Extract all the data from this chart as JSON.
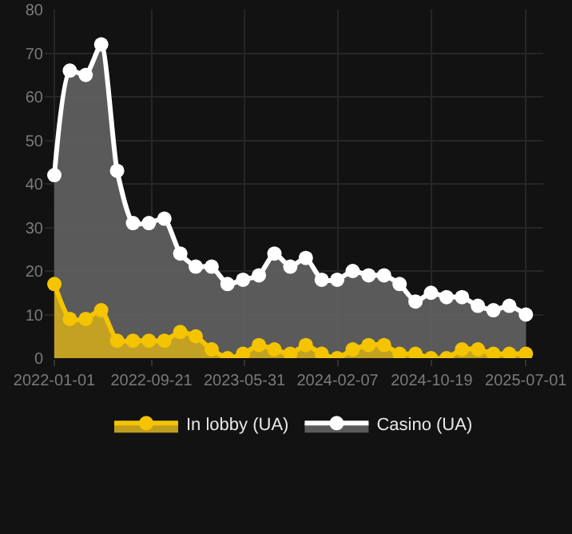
{
  "chart_data": {
    "type": "area",
    "x": [
      "2022-01-01",
      "2022-02-12",
      "2022-03-27",
      "2022-05-08",
      "2022-06-20",
      "2022-08-02",
      "2022-09-14",
      "2022-10-26",
      "2022-12-08",
      "2023-01-19",
      "2023-03-03",
      "2023-04-15",
      "2023-05-27",
      "2023-07-09",
      "2023-08-20",
      "2023-10-02",
      "2023-11-13",
      "2023-12-26",
      "2024-02-06",
      "2024-03-19",
      "2024-05-01",
      "2024-06-12",
      "2024-07-24",
      "2024-09-05",
      "2024-10-17",
      "2024-11-28",
      "2025-01-09",
      "2025-02-21",
      "2025-04-04",
      "2025-05-17",
      "2025-07-01"
    ],
    "series": [
      {
        "name": "In lobby (UA)",
        "color": "#f5c400",
        "values": [
          17,
          9,
          9,
          11,
          4,
          4,
          4,
          4,
          6,
          5,
          2,
          0,
          1,
          3,
          2,
          1,
          3,
          1,
          0,
          2,
          3,
          3,
          1,
          1,
          0,
          0,
          2,
          2,
          1,
          1,
          1
        ]
      },
      {
        "name": "Casino (UA)",
        "color": "#ffffff",
        "values": [
          42,
          66,
          65,
          72,
          43,
          31,
          31,
          32,
          24,
          21,
          21,
          17,
          18,
          19,
          24,
          21,
          23,
          18,
          18,
          20,
          19,
          19,
          17,
          13,
          15,
          14,
          14,
          12,
          11,
          12,
          10
        ]
      }
    ],
    "ylim": [
      0,
      80
    ],
    "yticks": [
      0,
      10,
      20,
      30,
      40,
      50,
      60,
      70,
      80
    ],
    "xlim": [
      "2021-12-06",
      "2025-08-17"
    ],
    "xticks": [
      "2022-01-01",
      "2022-09-21",
      "2023-05-31",
      "2024-02-07",
      "2024-10-19",
      "2025-07-01"
    ],
    "grid": true,
    "legend": "bottom",
    "marker": "circle",
    "line_style": "solid"
  }
}
